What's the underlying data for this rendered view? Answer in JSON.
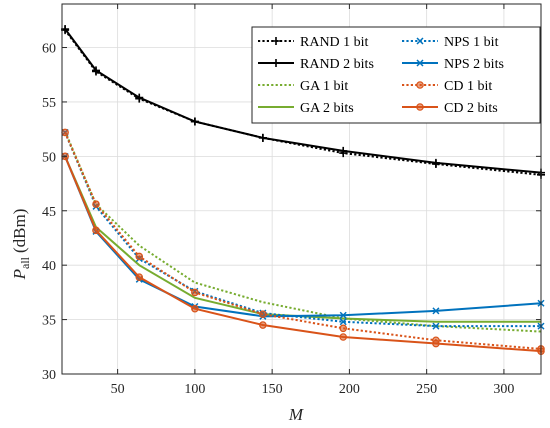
{
  "chart_data": {
    "type": "line",
    "title": "",
    "xlabel": "M",
    "ylabel_main": "P",
    "ylabel_sub": "all",
    "ylabel_unit": "(dBm)",
    "xlim": [
      14,
      324
    ],
    "ylim": [
      30,
      64
    ],
    "xticks": [
      50,
      100,
      150,
      200,
      250,
      300
    ],
    "yticks": [
      30,
      35,
      40,
      45,
      50,
      55,
      60
    ],
    "grid": true,
    "legend_position": "top-right",
    "x": [
      16,
      36,
      64,
      100,
      144,
      196,
      256,
      324
    ],
    "series": [
      {
        "name": "RAND 1 bit",
        "color": "#000000",
        "dash": "dotted",
        "marker": "plus",
        "values": [
          61.6,
          57.8,
          55.3,
          53.2,
          51.7,
          50.3,
          49.3,
          48.3
        ]
      },
      {
        "name": "RAND 2 bits",
        "color": "#000000",
        "dash": "solid",
        "marker": "plus",
        "values": [
          61.7,
          57.9,
          55.4,
          53.2,
          51.7,
          50.5,
          49.4,
          48.5
        ]
      },
      {
        "name": "GA 1 bit",
        "color": "#77AC30",
        "dash": "dotted",
        "marker": "none",
        "values": [
          52.3,
          45.6,
          41.8,
          38.4,
          36.6,
          35.1,
          34.4,
          33.9
        ]
      },
      {
        "name": "GA 2 bits",
        "color": "#77AC30",
        "dash": "solid",
        "marker": "none",
        "values": [
          50.0,
          43.5,
          40.0,
          37.0,
          35.5,
          35.1,
          34.8,
          34.8
        ]
      },
      {
        "name": "NPS 1 bit",
        "color": "#0072BD",
        "dash": "dotted",
        "marker": "x",
        "values": [
          52.2,
          45.4,
          40.6,
          37.6,
          35.6,
          34.8,
          34.4,
          34.4
        ]
      },
      {
        "name": "NPS 2 bits",
        "color": "#0072BD",
        "dash": "solid",
        "marker": "x",
        "values": [
          50.0,
          43.1,
          38.7,
          36.2,
          35.3,
          35.4,
          35.8,
          36.5
        ]
      },
      {
        "name": "CD 1 bit",
        "color": "#D95319",
        "dash": "dotted",
        "marker": "circle",
        "values": [
          52.2,
          45.6,
          40.8,
          37.5,
          35.5,
          34.2,
          33.1,
          32.3
        ]
      },
      {
        "name": "CD 2 bits",
        "color": "#D95319",
        "dash": "solid",
        "marker": "circle",
        "values": [
          50.0,
          43.2,
          38.9,
          36.0,
          34.5,
          33.4,
          32.8,
          32.1
        ]
      }
    ]
  }
}
